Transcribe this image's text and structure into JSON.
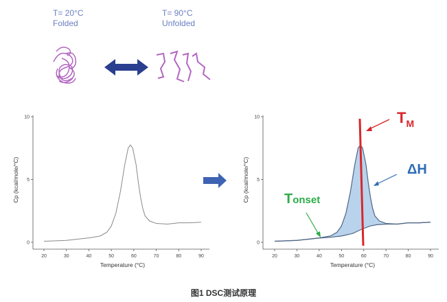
{
  "top": {
    "folded_temp": "T= 20°C",
    "folded_label": "Folded",
    "unfolded_temp": "T= 90°C",
    "unfolded_label": "Unfolded"
  },
  "annotations": {
    "tm_main": "T",
    "tm_sub": "M",
    "dh": "ΔH",
    "tonset_main": "T",
    "tonset_sub": "onset"
  },
  "caption": "图1 DSC测试原理",
  "colors": {
    "arrow_blue": "#2a3f8f",
    "tm_red": "#d9262b",
    "dh_blue": "#2f6db5",
    "tonset_green": "#2bab4a",
    "protein": "#b265c0",
    "fill": "#b9d3ec"
  },
  "chart_data": [
    {
      "type": "line",
      "xlabel": "Temperature (°C)",
      "ylabel": "Cp (kcal/mole/°C)",
      "xlim": [
        15,
        92
      ],
      "ylim": [
        -0.3,
        10
      ],
      "xticks": [
        20,
        30,
        40,
        50,
        60,
        70,
        80,
        90
      ],
      "yticks": [
        0,
        5,
        10
      ],
      "series": [
        {
          "x": [
            20,
            30,
            40,
            45,
            48,
            50,
            52,
            54,
            56,
            57.5,
            58.5,
            59.5,
            61,
            62,
            63,
            64,
            65,
            67,
            70,
            75,
            80,
            85,
            90
          ],
          "y": [
            0.08,
            0.15,
            0.35,
            0.5,
            0.8,
            1.3,
            2.3,
            4.0,
            6.2,
            7.5,
            7.75,
            7.5,
            6.2,
            4.8,
            3.6,
            2.7,
            2.1,
            1.7,
            1.5,
            1.45,
            1.55,
            1.55,
            1.6
          ]
        }
      ]
    },
    {
      "type": "area",
      "xlabel": "Temperature (°C)",
      "ylabel": "Cp (kcal/mole/°C)",
      "xlim": [
        15,
        92
      ],
      "ylim": [
        -0.3,
        10
      ],
      "xticks": [
        20,
        30,
        40,
        50,
        60,
        70,
        80,
        90
      ],
      "yticks": [
        0,
        5,
        10
      ],
      "series": [
        {
          "x": [
            20,
            30,
            40,
            45,
            48,
            50,
            52,
            54,
            56,
            57.5,
            58.5,
            59.5,
            61,
            62,
            63,
            64,
            65,
            67,
            70,
            75,
            80,
            85,
            90
          ],
          "y": [
            0.08,
            0.15,
            0.35,
            0.5,
            0.8,
            1.3,
            2.3,
            4.0,
            6.2,
            7.5,
            7.75,
            7.5,
            6.2,
            4.8,
            3.6,
            2.7,
            2.1,
            1.7,
            1.5,
            1.45,
            1.55,
            1.55,
            1.6
          ]
        },
        {
          "x": [
            20,
            30,
            40,
            45,
            50,
            55,
            58,
            60,
            63,
            66,
            70,
            75,
            80,
            85,
            90
          ],
          "y": [
            0.08,
            0.15,
            0.33,
            0.4,
            0.5,
            0.7,
            0.95,
            1.1,
            1.3,
            1.4,
            1.45,
            1.45,
            1.55,
            1.55,
            1.6
          ]
        }
      ],
      "tm": 59
    }
  ]
}
